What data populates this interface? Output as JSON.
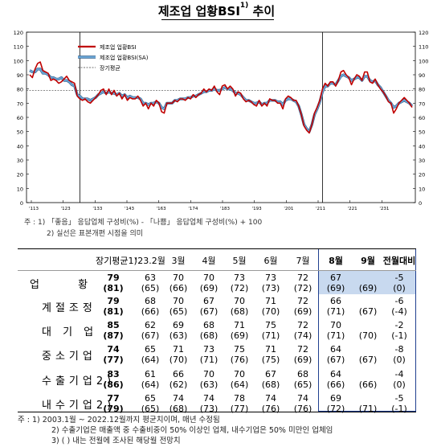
{
  "title": {
    "main": "제조업 업황BSI",
    "sup": "1)",
    "suffix": " 추이"
  },
  "chart_data": {
    "type": "line",
    "ylim": [
      0,
      120
    ],
    "yticks": [
      0,
      10,
      20,
      30,
      40,
      50,
      60,
      70,
      80,
      90,
      100,
      110,
      120
    ],
    "xticks": [
      "'03",
      "'06",
      "'09",
      "'12",
      "'15",
      "'18",
      "'21",
      "'24"
    ],
    "xtick_labels": [
      "'113",
      "'123",
      "'133",
      "'143",
      "'163",
      "'174",
      "'183",
      "'193",
      "'201",
      "'211",
      "'221",
      "'231"
    ],
    "grid": false,
    "legend_position": "top-left",
    "long_term_average": 79,
    "series": [
      {
        "name": "제조업 업황BSI",
        "color": "#c00000",
        "values": [
          90,
          88,
          94,
          98,
          99,
          93,
          92,
          91,
          86,
          87,
          86,
          84,
          85,
          87,
          89,
          86,
          85,
          84,
          75,
          73,
          72,
          73,
          71,
          70,
          72,
          74,
          76,
          79,
          80,
          76,
          80,
          76,
          79,
          75,
          77,
          73,
          76,
          72,
          74,
          73,
          73,
          75,
          72,
          68,
          70,
          66,
          70,
          68,
          72,
          70,
          64,
          63,
          70,
          70,
          70,
          72,
          71,
          73,
          73,
          72,
          74,
          73,
          76,
          74,
          76,
          77,
          80,
          78,
          80,
          79,
          82,
          78,
          76,
          82,
          83,
          80,
          82,
          80,
          75,
          78,
          77,
          73,
          71,
          72,
          71,
          69,
          68,
          72,
          68,
          70,
          68,
          73,
          72,
          72,
          70,
          70,
          66,
          73,
          75,
          74,
          72,
          72,
          68,
          62,
          54,
          51,
          49,
          55,
          63,
          67,
          72,
          80,
          84,
          82,
          85,
          85,
          82,
          86,
          92,
          93,
          90,
          88,
          83,
          87,
          90,
          89,
          86,
          92,
          92,
          85,
          84,
          87,
          83,
          80,
          78,
          75,
          71,
          70,
          63,
          66,
          70,
          72,
          74,
          72,
          70,
          67
        ],
        "smooth": false
      },
      {
        "name": "제조업 업황BSI(SA)",
        "color": "#6aa6d6",
        "values": [
          93,
          92,
          92,
          94,
          94,
          91,
          91,
          90,
          88,
          88,
          87,
          87,
          88,
          86,
          86,
          85,
          83,
          82,
          76,
          75,
          73,
          73,
          73,
          72,
          73,
          74,
          76,
          77,
          78,
          77,
          78,
          77,
          77,
          76,
          77,
          75,
          76,
          74,
          75,
          74,
          74,
          74,
          73,
          70,
          70,
          69,
          70,
          70,
          71,
          70,
          67,
          66,
          70,
          70,
          70,
          72,
          72,
          73,
          73,
          73,
          74,
          74,
          75,
          75,
          76,
          77,
          78,
          78,
          79,
          79,
          80,
          79,
          79,
          80,
          81,
          80,
          80,
          79,
          77,
          77,
          76,
          74,
          72,
          72,
          71,
          70,
          70,
          71,
          69,
          70,
          70,
          72,
          72,
          72,
          71,
          71,
          69,
          72,
          73,
          73,
          72,
          71,
          68,
          62,
          55,
          52,
          50,
          55,
          62,
          66,
          71,
          78,
          82,
          82,
          84,
          84,
          83,
          86,
          89,
          90,
          89,
          88,
          86,
          87,
          88,
          88,
          86,
          89,
          89,
          86,
          85,
          86,
          83,
          81,
          78,
          75,
          72,
          70,
          67,
          68,
          70,
          71,
          72,
          71,
          70,
          68
        ],
        "smooth": true
      },
      {
        "name": "장기평균",
        "color": "#333333",
        "dashed": true,
        "values": [
          79
        ]
      }
    ],
    "dividers_at_index": [
      19,
      111
    ]
  },
  "chart_notes": {
    "line1": "주 : 1) 「좋음」 응답업체 구성비(%) - 「나쁨」 응답업체 구성비(%) + 100",
    "line2": "2) 실선은 표본개편 시점을 의미"
  },
  "table": {
    "columns": [
      "장기평균1)",
      "'23.2월",
      "3월",
      "4월",
      "5월",
      "6월",
      "7월",
      "8월",
      "9월",
      "전월대비"
    ],
    "rows": [
      {
        "label": "업 황",
        "avg": "79",
        "avg_prev": "(81)",
        "vals": [
          "63",
          "70",
          "70",
          "73",
          "73",
          "72",
          "67",
          "",
          "-5"
        ],
        "subs": [
          "(65)",
          "(66)",
          "(69)",
          "(72)",
          "(73)",
          "(72)",
          "(69)",
          "(69)",
          "(0)"
        ]
      },
      {
        "label": "계절조정",
        "avg": "79",
        "avg_prev": "(81)",
        "vals": [
          "68",
          "70",
          "67",
          "70",
          "71",
          "72",
          "66",
          "",
          "-6"
        ],
        "subs": [
          "(66)",
          "(65)",
          "(67)",
          "(68)",
          "(70)",
          "(69)",
          "(71)",
          "(67)",
          "(-4)"
        ]
      },
      {
        "label": "대 기 업",
        "avg": "85",
        "avg_prev": "(87)",
        "vals": [
          "62",
          "69",
          "68",
          "71",
          "75",
          "72",
          "70",
          "",
          "-2"
        ],
        "subs": [
          "(67)",
          "(63)",
          "(68)",
          "(69)",
          "(71)",
          "(74)",
          "(71)",
          "(70)",
          "(-1)"
        ]
      },
      {
        "label": "중소기업",
        "avg": "74",
        "avg_prev": "(77)",
        "vals": [
          "65",
          "71",
          "73",
          "75",
          "71",
          "72",
          "64",
          "",
          "-8"
        ],
        "subs": [
          "(64)",
          "(70)",
          "(71)",
          "(76)",
          "(75)",
          "(69)",
          "(67)",
          "(67)",
          "(0)"
        ]
      },
      {
        "label": "수출기업2)",
        "avg": "83",
        "avg_prev": "(86)",
        "vals": [
          "61",
          "66",
          "70",
          "70",
          "67",
          "68",
          "64",
          "",
          "-4"
        ],
        "subs": [
          "(64)",
          "(62)",
          "(63)",
          "(64)",
          "(68)",
          "(65)",
          "(66)",
          "(66)",
          "(0)"
        ]
      },
      {
        "label": "내수기업2)",
        "avg": "77",
        "avg_prev": "(79)",
        "vals": [
          "65",
          "74",
          "74",
          "78",
          "74",
          "74",
          "69",
          "",
          "-5"
        ],
        "subs": [
          "(65)",
          "(68)",
          "(73)",
          "(77)",
          "(76)",
          "(76)",
          "(72)",
          "(71)",
          "(-1)"
        ]
      }
    ]
  },
  "notes": {
    "n1": "주 : 1) 2003.1월 ~ 2022.12월까지 평균치이며, 매년 수정됨",
    "n2": "2) 수출기업은 매출액 중 수출비중이 50% 이상인 업체, 내수기업은 50% 미만인 업체임",
    "n3": "3) ( ) 내는 전월에 조사된 해당월 전망치"
  }
}
